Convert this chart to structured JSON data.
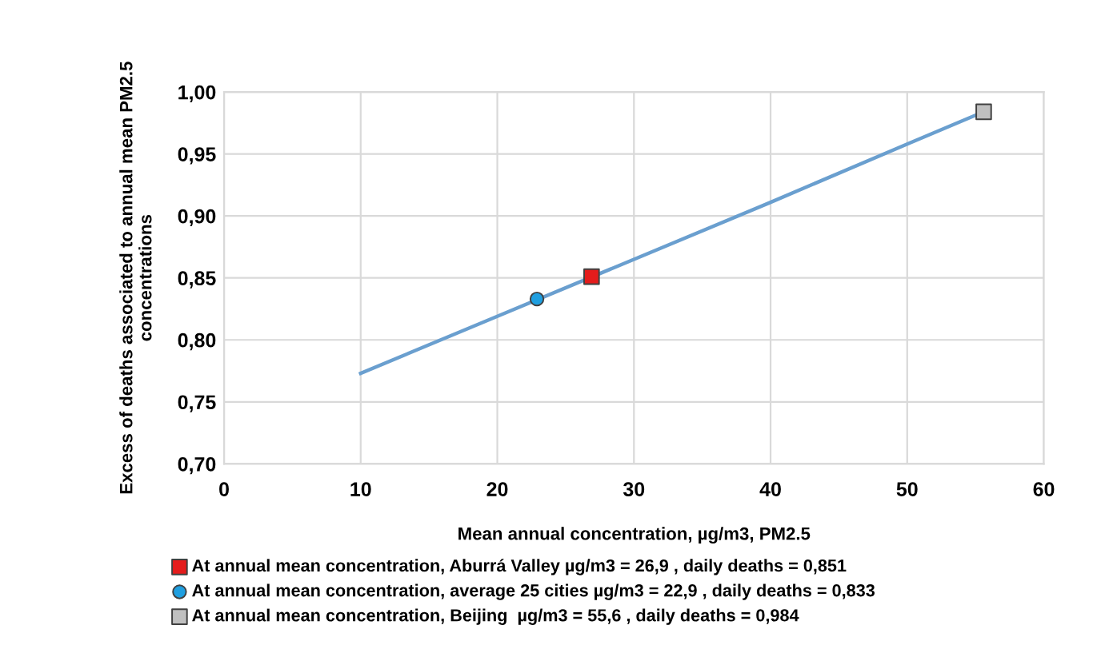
{
  "chart_data": {
    "type": "line",
    "xlabel": "Mean annual concentration, µg/m3, PM2.5",
    "ylabel": "Excess of deaths associated to annual mean PM2.5 concentrations",
    "series": [
      {
        "color": "#6a9fcf",
        "marker": "none",
        "x": [
          10,
          20,
          30,
          40,
          50,
          55.6
        ],
        "values": [
          0.773,
          0.819,
          0.865,
          0.911,
          0.958,
          0.984
        ]
      },
      {
        "type": "scatter",
        "name": "At annual mean concentration, Aburrá Valley µg/m3 = 26,9 , daily deaths = 0,851",
        "color": "#e41c1c",
        "marker": "square",
        "x": [
          26.9
        ],
        "values": [
          0.851
        ]
      },
      {
        "type": "scatter",
        "name": "At annual mean concentration, average 25 cities µg/m3 = 22,9 , daily deaths = 0,833",
        "color": "#1f9fe0",
        "marker": "circle",
        "x": [
          22.9
        ],
        "values": [
          0.833
        ]
      },
      {
        "type": "scatter",
        "name": "At annual mean concentration, Beijing  µg/m3 = 55,6 , daily deaths = 0,984",
        "color": "#c0c0c0",
        "marker": "square",
        "x": [
          55.6
        ],
        "values": [
          0.984
        ]
      }
    ],
    "xlim": [
      0,
      60
    ],
    "xticks": [
      0,
      10,
      20,
      30,
      40,
      50,
      60
    ],
    "ylim": [
      0.7,
      1.0
    ],
    "yticks": [
      {
        "value": 0.7,
        "label": "0,70"
      },
      {
        "value": 0.75,
        "label": "0,75"
      },
      {
        "value": 0.8,
        "label": "0,80"
      },
      {
        "value": 0.85,
        "label": "0,85"
      },
      {
        "value": 0.9,
        "label": "0,90"
      },
      {
        "value": 0.95,
        "label": "0,95"
      },
      {
        "value": 1.0,
        "label": "1,00"
      }
    ],
    "grid": true,
    "legend": "bottom"
  }
}
